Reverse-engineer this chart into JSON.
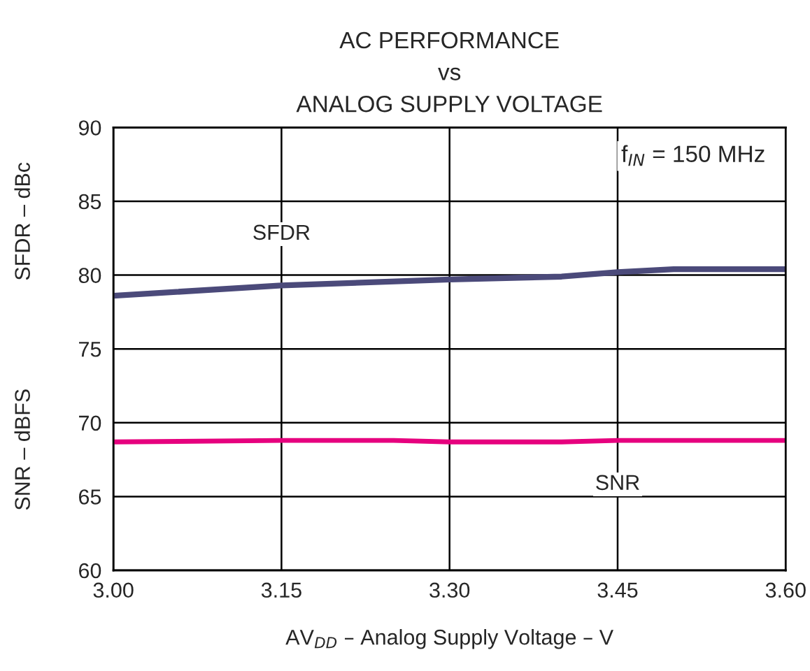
{
  "chart_data": {
    "type": "line",
    "title": "AC PERFORMANCE\nvs\nANALOG SUPPLY VOLTAGE",
    "xlabel": "AV$_{DD}$ – Analog Supply Voltage – V",
    "ylabel": "SFDR – dBc",
    "annotations": [
      "SNR – dBFS",
      "f$_{IN}$ = 150 MHz"
    ],
    "series": [
      {
        "name": "SFDR",
        "color": "#4b4a7a",
        "x": [
          3.0,
          3.15,
          3.3,
          3.4,
          3.45,
          3.5,
          3.6
        ],
        "values": [
          78.6,
          79.3,
          79.7,
          79.9,
          80.2,
          80.4,
          80.4
        ]
      },
      {
        "name": "SNR",
        "color": "#e6007e",
        "x": [
          3.0,
          3.15,
          3.25,
          3.3,
          3.4,
          3.45,
          3.6
        ],
        "values": [
          68.7,
          68.8,
          68.8,
          68.7,
          68.7,
          68.8,
          68.8
        ]
      }
    ],
    "xlim": [
      3.0,
      3.6
    ],
    "xticks": [
      {
        "value": 3.0,
        "label": "3.00"
      },
      {
        "value": 3.15,
        "label": "3.15"
      },
      {
        "value": 3.3,
        "label": "3.30"
      },
      {
        "value": 3.45,
        "label": "3.45"
      },
      {
        "value": 3.6,
        "label": "3.60"
      }
    ],
    "ylim": [
      60,
      90
    ],
    "yticks": [
      60,
      65,
      70,
      75,
      80,
      85,
      90
    ],
    "grid": true,
    "legend": false,
    "line_style": "solid",
    "marker": "none"
  }
}
